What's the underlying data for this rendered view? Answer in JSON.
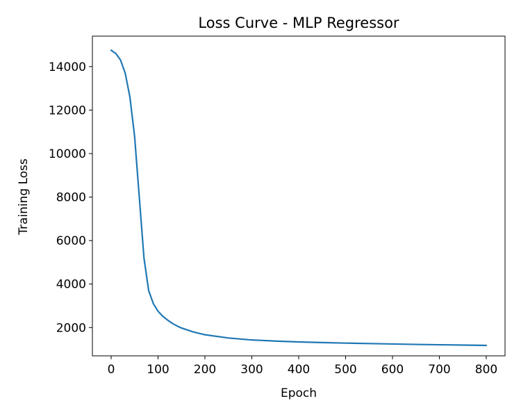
{
  "chart_data": {
    "type": "line",
    "title": "Loss Curve - MLP Regressor",
    "xlabel": "Epoch",
    "ylabel": "Training Loss",
    "xlim": [
      -40,
      840
    ],
    "ylim": [
      700,
      15400
    ],
    "xticks": [
      0,
      100,
      200,
      300,
      400,
      500,
      600,
      700,
      800
    ],
    "yticks": [
      2000,
      4000,
      6000,
      8000,
      10000,
      12000,
      14000
    ],
    "grid": false,
    "line_color": "#1f77b4",
    "series": [
      {
        "x": [
          0,
          10,
          20,
          30,
          40,
          50,
          60,
          70,
          80,
          90,
          100,
          110,
          120,
          130,
          140,
          150,
          175,
          200,
          250,
          300,
          350,
          400,
          450,
          500,
          550,
          600,
          650,
          700,
          750,
          800
        ],
        "values": [
          14750,
          14600,
          14300,
          13700,
          12600,
          10800,
          8000,
          5200,
          3700,
          3100,
          2750,
          2520,
          2350,
          2200,
          2080,
          1980,
          1800,
          1670,
          1520,
          1430,
          1380,
          1340,
          1310,
          1285,
          1265,
          1245,
          1225,
          1210,
          1195,
          1180
        ]
      }
    ]
  }
}
